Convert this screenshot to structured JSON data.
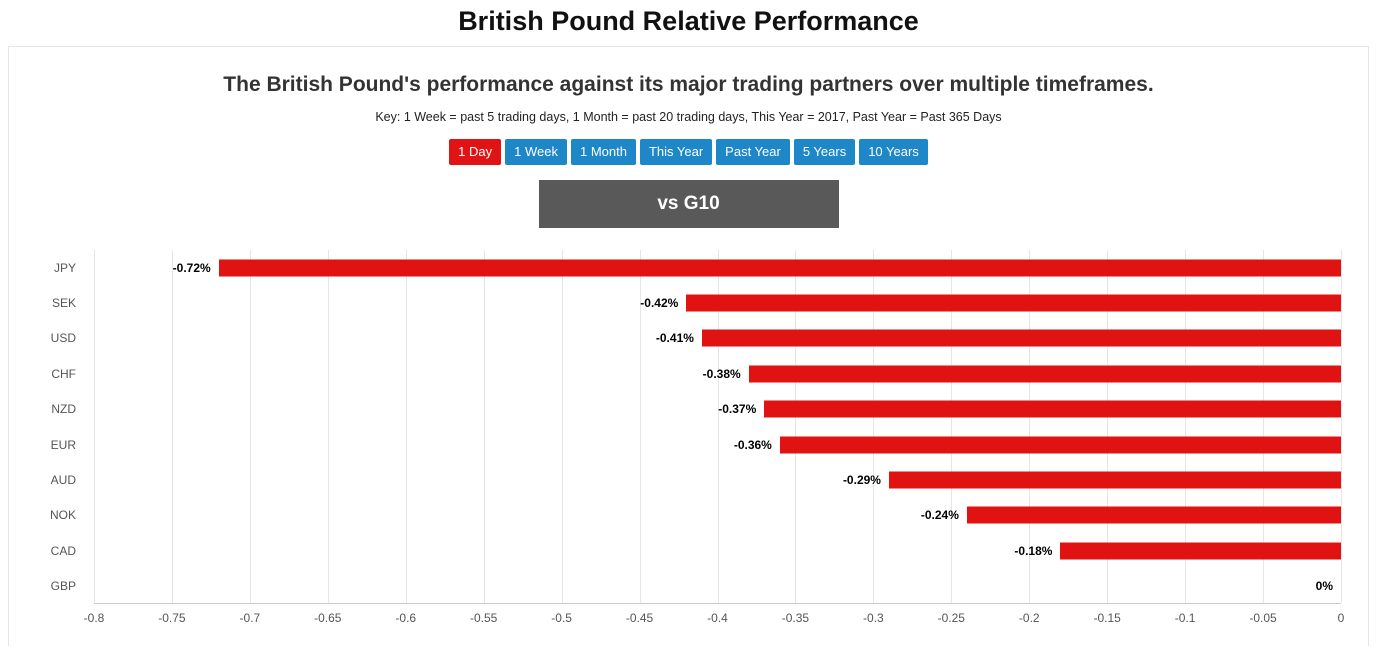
{
  "header": {
    "title": "British Pound Relative Performance",
    "subtitle": "The British Pound's performance against its major trading partners over multiple timeframes.",
    "key_note": "Key: 1 Week = past 5 trading days, 1 Month = past 20 trading days, This Year = 2017, Past Year = Past 365 Days"
  },
  "timeframe_buttons": [
    {
      "label": "1 Day",
      "active": true
    },
    {
      "label": "1 Week",
      "active": false
    },
    {
      "label": "1 Month",
      "active": false
    },
    {
      "label": "This Year",
      "active": false
    },
    {
      "label": "Past Year",
      "active": false
    },
    {
      "label": "5 Years",
      "active": false
    },
    {
      "label": "10 Years",
      "active": false
    }
  ],
  "comparison_banner": {
    "label": "vs G10"
  },
  "colors": {
    "active_button": "#e01414",
    "inactive_button": "#1e87c8",
    "banner_bg": "#595959",
    "bar": "#e11212"
  },
  "chart_data": {
    "type": "bar",
    "orientation": "horizontal",
    "title": "vs G10",
    "categories": [
      "JPY",
      "SEK",
      "USD",
      "CHF",
      "NZD",
      "EUR",
      "AUD",
      "NOK",
      "CAD",
      "GBP"
    ],
    "values": [
      -0.72,
      -0.42,
      -0.41,
      -0.38,
      -0.37,
      -0.36,
      -0.29,
      -0.24,
      -0.18,
      0
    ],
    "value_labels": [
      "-0.72%",
      "-0.42%",
      "-0.41%",
      "-0.38%",
      "-0.37%",
      "-0.36%",
      "-0.29%",
      "-0.24%",
      "-0.18%",
      "0%"
    ],
    "xlabel": "",
    "ylabel": "",
    "xlim": [
      -0.8,
      0
    ],
    "x_ticks": [
      -0.8,
      -0.75,
      -0.7,
      -0.65,
      -0.6,
      -0.55,
      -0.5,
      -0.45,
      -0.4,
      -0.35,
      -0.3,
      -0.25,
      -0.2,
      -0.15,
      -0.1,
      -0.05,
      0
    ],
    "x_tick_labels": [
      "-0.8",
      "-0.75",
      "-0.7",
      "-0.65",
      "-0.6",
      "-0.55",
      "-0.5",
      "-0.45",
      "-0.4",
      "-0.35",
      "-0.3",
      "-0.25",
      "-0.2",
      "-0.15",
      "-0.1",
      "-0.05",
      "0"
    ],
    "grid": true,
    "legend": false,
    "bar_color": "#e11212"
  }
}
